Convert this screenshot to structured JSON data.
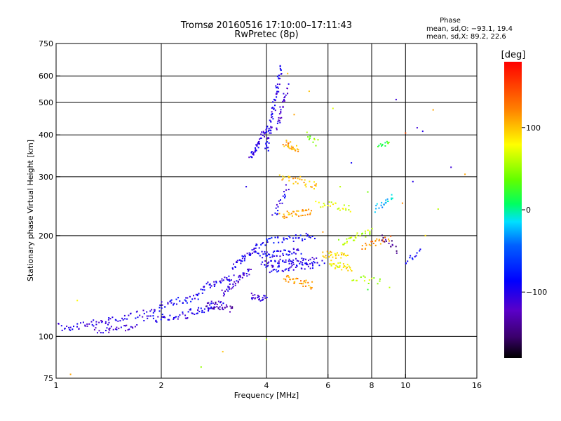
{
  "chart_data": {
    "type": "scatter",
    "title": "Tromsø 20160516 17:10:00–17:11:43",
    "subtitle": "RwPretec (8p)",
    "xlabel": "Frequency [MHz]",
    "ylabel": "Stationary phase Virtual Height [km]",
    "x_scale": "log2",
    "y_scale": "log",
    "xlim": [
      1,
      16
    ],
    "ylim": [
      75,
      750
    ],
    "x_ticks": [
      {
        "value": 1,
        "label": "1"
      },
      {
        "value": 2,
        "label": "2"
      },
      {
        "value": 4,
        "label": "4"
      },
      {
        "value": 6,
        "label": "6"
      },
      {
        "value": 8,
        "label": "8"
      },
      {
        "value": 10,
        "label": "10"
      },
      {
        "value": 16,
        "label": "16"
      }
    ],
    "y_ticks": [
      {
        "value": 75,
        "label": "75"
      },
      {
        "value": 100,
        "label": "100"
      },
      {
        "value": 200,
        "label": "200"
      },
      {
        "value": 300,
        "label": "300"
      },
      {
        "value": 400,
        "label": "400"
      },
      {
        "value": 500,
        "label": "500"
      },
      {
        "value": 600,
        "label": "600"
      },
      {
        "value": 750,
        "label": "750"
      }
    ],
    "x_gridlines": [
      2,
      4,
      6,
      8,
      10
    ],
    "y_gridlines": [
      100,
      200,
      300,
      400,
      500,
      600
    ],
    "grid": true,
    "stats": {
      "heading": "Phase",
      "line_o": "mean, sd,O: −93.1, 19.4",
      "line_x": "mean, sd,X:  89.2, 22.6"
    },
    "colorbar": {
      "label": "[deg]",
      "range": [
        -180,
        180
      ],
      "ticks": [
        {
          "value": 100,
          "label": "100"
        },
        {
          "value": 0,
          "label": "0"
        },
        {
          "value": -100,
          "label": "−100"
        }
      ]
    },
    "point_segments": [
      {
        "from": [
          1.0,
          107
        ],
        "to": [
          1.1,
          106
        ],
        "count": 10,
        "phase": -100
      },
      {
        "from": [
          1.1,
          106
        ],
        "to": [
          1.4,
          111
        ],
        "count": 28,
        "phase": -105
      },
      {
        "from": [
          1.3,
          104
        ],
        "to": [
          1.7,
          106
        ],
        "count": 30,
        "phase": -110
      },
      {
        "from": [
          1.4,
          112
        ],
        "to": [
          2.0,
          120
        ],
        "count": 35,
        "phase": -100
      },
      {
        "from": [
          1.8,
          112
        ],
        "to": [
          2.4,
          116
        ],
        "count": 35,
        "phase": -95
      },
      {
        "from": [
          2.0,
          124
        ],
        "to": [
          2.6,
          132
        ],
        "count": 35,
        "phase": -95
      },
      {
        "from": [
          2.4,
          118
        ],
        "to": [
          3.0,
          125
        ],
        "count": 35,
        "phase": -100
      },
      {
        "from": [
          2.6,
          140
        ],
        "to": [
          3.2,
          150
        ],
        "count": 35,
        "phase": -100
      },
      {
        "from": [
          2.7,
          125
        ],
        "to": [
          3.2,
          120
        ],
        "count": 30,
        "phase": -130
      },
      {
        "from": [
          3.0,
          135
        ],
        "to": [
          3.6,
          158
        ],
        "count": 40,
        "phase": -110
      },
      {
        "from": [
          3.2,
          160
        ],
        "to": [
          3.8,
          185
        ],
        "count": 40,
        "phase": -100
      },
      {
        "from": [
          3.6,
          132
        ],
        "to": [
          4.0,
          130
        ],
        "count": 25,
        "phase": -110
      },
      {
        "from": [
          3.8,
          175
        ],
        "to": [
          5.0,
          180
        ],
        "count": 50,
        "phase": -95
      },
      {
        "from": [
          3.9,
          165
        ],
        "to": [
          5.5,
          168
        ],
        "count": 55,
        "phase": -100
      },
      {
        "from": [
          4.0,
          158
        ],
        "to": [
          5.8,
          165
        ],
        "count": 45,
        "phase": -95
      },
      {
        "from": [
          3.8,
          190
        ],
        "to": [
          5.5,
          200
        ],
        "count": 40,
        "phase": -85
      },
      {
        "from": [
          3.6,
          340
        ],
        "to": [
          4.0,
          420
        ],
        "count": 45,
        "phase": -100
      },
      {
        "from": [
          4.0,
          360
        ],
        "to": [
          4.4,
          640
        ],
        "count": 70,
        "phase": -100
      },
      {
        "from": [
          4.3,
          420
        ],
        "to": [
          4.6,
          560
        ],
        "count": 30,
        "phase": -110
      },
      {
        "from": [
          4.2,
          230
        ],
        "to": [
          4.6,
          280
        ],
        "count": 20,
        "phase": -100
      },
      {
        "from": [
          4.5,
          150
        ],
        "to": [
          5.4,
          142
        ],
        "count": 35,
        "phase": 115
      },
      {
        "from": [
          4.4,
          230
        ],
        "to": [
          5.4,
          235
        ],
        "count": 35,
        "phase": 110
      },
      {
        "from": [
          4.4,
          300
        ],
        "to": [
          5.6,
          280
        ],
        "count": 30,
        "phase": 105
      },
      {
        "from": [
          4.5,
          380
        ],
        "to": [
          4.9,
          360
        ],
        "count": 25,
        "phase": 110
      },
      {
        "from": [
          5.2,
          400
        ],
        "to": [
          5.6,
          380
        ],
        "count": 10,
        "phase": 50
      },
      {
        "from": [
          5.8,
          175
        ],
        "to": [
          6.8,
          175
        ],
        "count": 30,
        "phase": 90
      },
      {
        "from": [
          6.0,
          165
        ],
        "to": [
          7.0,
          160
        ],
        "count": 30,
        "phase": 80
      },
      {
        "from": [
          5.6,
          250
        ],
        "to": [
          7.0,
          240
        ],
        "count": 25,
        "phase": 70
      },
      {
        "from": [
          6.5,
          190
        ],
        "to": [
          8.0,
          205
        ],
        "count": 30,
        "phase": 60
      },
      {
        "from": [
          7.5,
          185
        ],
        "to": [
          9.0,
          195
        ],
        "count": 25,
        "phase": 120
      },
      {
        "from": [
          8.2,
          240
        ],
        "to": [
          9.2,
          260
        ],
        "count": 20,
        "phase": -20
      },
      {
        "from": [
          8.3,
          370
        ],
        "to": [
          9.0,
          380
        ],
        "count": 12,
        "phase": 20
      },
      {
        "from": [
          8.5,
          200
        ],
        "to": [
          9.5,
          180
        ],
        "count": 15,
        "phase": -140
      },
      {
        "from": [
          10.0,
          165
        ],
        "to": [
          11.0,
          180
        ],
        "count": 12,
        "phase": -90
      },
      {
        "from": [
          7.0,
          150
        ],
        "to": [
          8.5,
          145
        ],
        "count": 15,
        "phase": 60
      }
    ],
    "scattered_points": [
      [
        1.15,
        128,
        80
      ],
      [
        1.1,
        77,
        110
      ],
      [
        2.6,
        81,
        50
      ],
      [
        4.6,
        610,
        100
      ],
      [
        5.3,
        540,
        100
      ],
      [
        9.4,
        510,
        -110
      ],
      [
        10.8,
        420,
        -110
      ],
      [
        12.0,
        475,
        110
      ],
      [
        11.2,
        410,
        -100
      ],
      [
        13.5,
        320,
        -110
      ],
      [
        14.8,
        305,
        110
      ],
      [
        10.0,
        405,
        145
      ],
      [
        12.4,
        240,
        60
      ],
      [
        10.5,
        290,
        -100
      ],
      [
        7.0,
        330,
        -90
      ],
      [
        5.0,
        300,
        100
      ],
      [
        6.5,
        280,
        60
      ],
      [
        7.8,
        270,
        40
      ],
      [
        9.8,
        250,
        120
      ],
      [
        11.4,
        200,
        90
      ],
      [
        9.0,
        140,
        60
      ],
      [
        7.8,
        138,
        20
      ],
      [
        4.0,
        98,
        60
      ],
      [
        3.0,
        90,
        100
      ],
      [
        6.2,
        480,
        70
      ],
      [
        4.8,
        460,
        110
      ],
      [
        3.5,
        280,
        -100
      ],
      [
        5.8,
        205,
        115
      ]
    ]
  }
}
